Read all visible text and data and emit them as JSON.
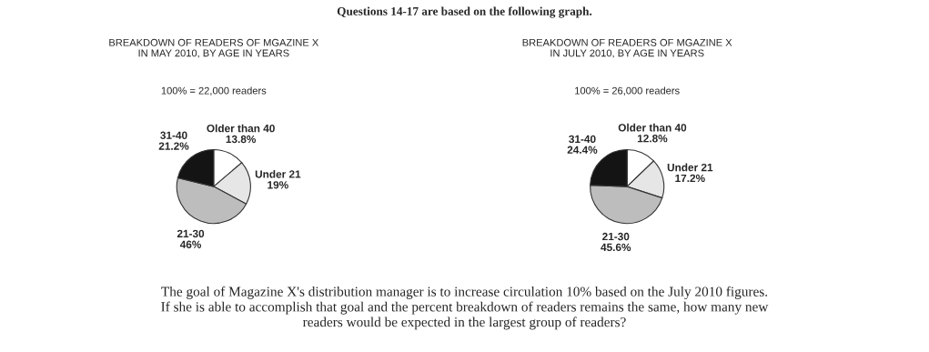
{
  "chart_data": [
    {
      "type": "pie",
      "title": "BREAKDOWN OF READERS OF MGAZINE X\nIN MAY 2010, BY AGE IN YEARS",
      "subtitle": "100% = 22,000 readers",
      "categories": [
        "Older than 40",
        "Under 21",
        "21-30",
        "31-40"
      ],
      "values": [
        13.8,
        19,
        46,
        21.2
      ],
      "value_labels": [
        "13.8%",
        "19%",
        "46%",
        "21.2%"
      ],
      "colors": [
        "#ffffff",
        "#e6e6e6",
        "#bdbdbd",
        "#141414"
      ],
      "annotations": [
        "Questions 14-17 are based on the following graph.",
        "The goal of Magazine X's distribution manager is to increase circulation 10% based on the July 2010 figures.\nIf she is able to accomplish that goal and the percent breakdown of readers remains the same, how many new\nreaders would be expected in the largest group of readers?"
      ]
    },
    {
      "type": "pie",
      "title": "BREAKDOWN OF READERS OF MGAZINE X\nIN JULY 2010, BY AGE IN YEARS",
      "subtitle": "100% = 26,000 readers",
      "categories": [
        "Older than 40",
        "Under 21",
        "21-30",
        "31-40"
      ],
      "values": [
        12.8,
        17.2,
        45.6,
        24.4
      ],
      "value_labels": [
        "12.8%",
        "17.2%",
        "45.6%",
        "24.4%"
      ],
      "colors": [
        "#ffffff",
        "#e6e6e6",
        "#bdbdbd",
        "#141414"
      ]
    }
  ]
}
